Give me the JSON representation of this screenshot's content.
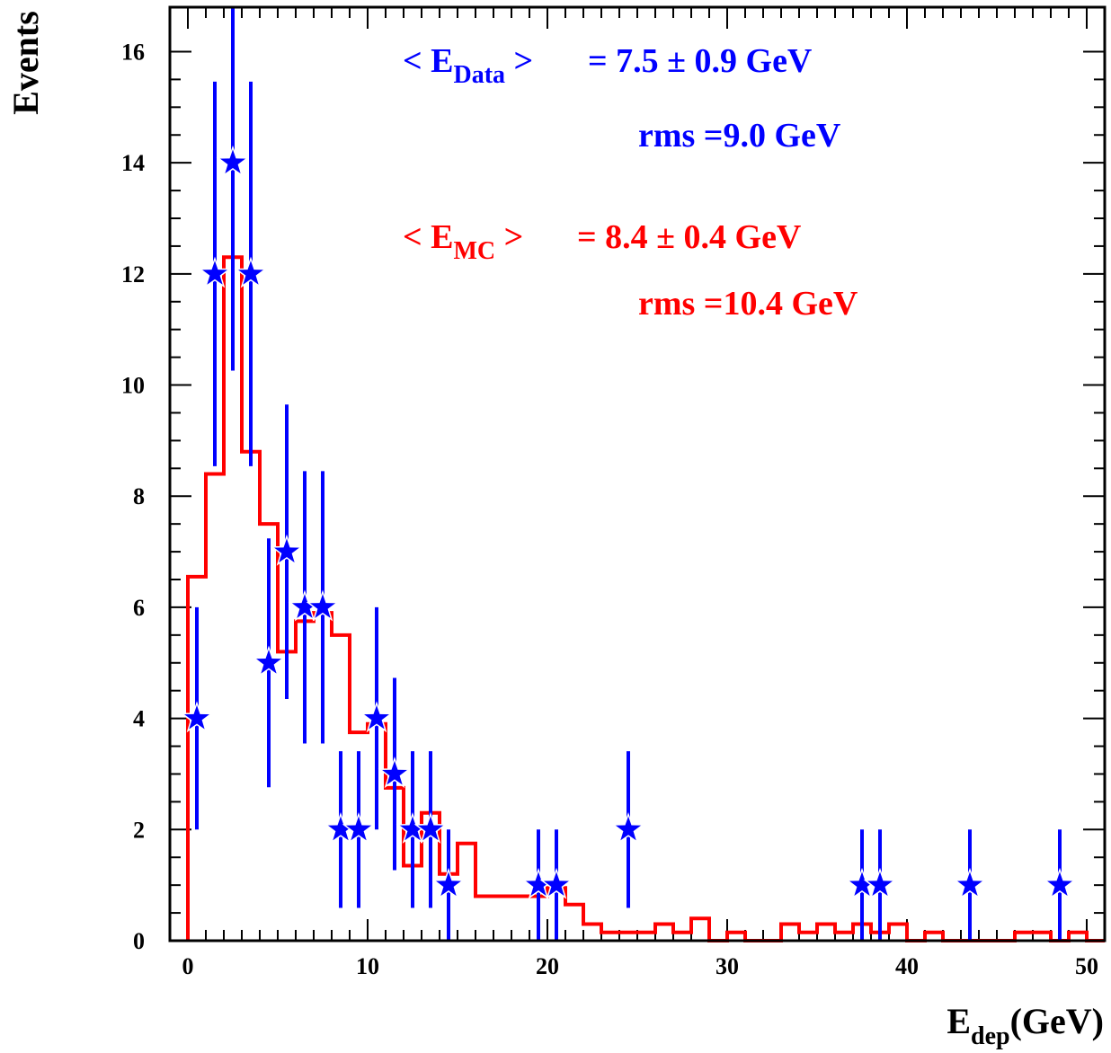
{
  "chart_data": {
    "type": "bar",
    "xlabel": {
      "main": "E",
      "sub": "dep",
      "rest": "(GeV)"
    },
    "ylabel": "Events",
    "xlim": [
      -1,
      51
    ],
    "ylim": [
      0,
      16.8
    ],
    "x_ticks": [
      0,
      10,
      20,
      30,
      40,
      50
    ],
    "y_ticks": [
      0,
      2,
      4,
      6,
      8,
      10,
      12,
      14,
      16
    ],
    "colors": {
      "data": "#0000ff",
      "mc": "#ff0000",
      "frame": "#000000"
    },
    "series": [
      {
        "kind": "histogram",
        "color": "#ff0000",
        "bin_width": 1,
        "bin_start": 0,
        "values": [
          6.55,
          8.4,
          12.3,
          8.8,
          7.5,
          5.2,
          5.75,
          5.9,
          5.5,
          3.75,
          3.9,
          2.75,
          1.35,
          2.3,
          1.2,
          1.75,
          0.8,
          0.8,
          0.8,
          0.8,
          0.95,
          0.65,
          0.3,
          0.15,
          0.15,
          0.15,
          0.3,
          0.15,
          0.4,
          0.0,
          0.15,
          0.0,
          0.0,
          0.3,
          0.15,
          0.3,
          0.15,
          0.3,
          0.15,
          0.3,
          0.0,
          0.15,
          0.0,
          0.0,
          0.0,
          0.0,
          0.15,
          0.15,
          0.0,
          0.15,
          0.0
        ]
      },
      {
        "kind": "points",
        "color": "#0000ff",
        "marker": "star",
        "x": [
          0.5,
          1.5,
          2.5,
          3.5,
          4.5,
          5.5,
          6.5,
          7.5,
          8.5,
          9.5,
          10.5,
          11.5,
          12.5,
          13.5,
          14.5,
          19.5,
          20.5,
          24.5,
          37.5,
          38.5,
          43.5,
          48.5
        ],
        "y": [
          4,
          12,
          14,
          12,
          5,
          7,
          6,
          6,
          2,
          2,
          4,
          3,
          2,
          2,
          1,
          1,
          1,
          2,
          1,
          1,
          1,
          1
        ],
        "yerr": [
          2,
          3.46,
          3.74,
          3.46,
          2.24,
          2.65,
          2.45,
          2.45,
          1.41,
          1.41,
          2,
          1.73,
          1.41,
          1.41,
          1,
          1,
          1,
          1.41,
          1,
          1,
          1,
          1
        ]
      }
    ],
    "annotations": {
      "data_mean": {
        "lt": "< E",
        "sub": "Data",
        "gt": " >",
        "value": "= 7.5 ± 0.9 GeV"
      },
      "data_rms": "rms =9.0 GeV",
      "mc_mean": {
        "lt": "< E",
        "sub": "MC",
        "gt": " >",
        "value": "= 8.4 ± 0.4 GeV"
      },
      "mc_rms": "rms =10.4 GeV"
    }
  }
}
